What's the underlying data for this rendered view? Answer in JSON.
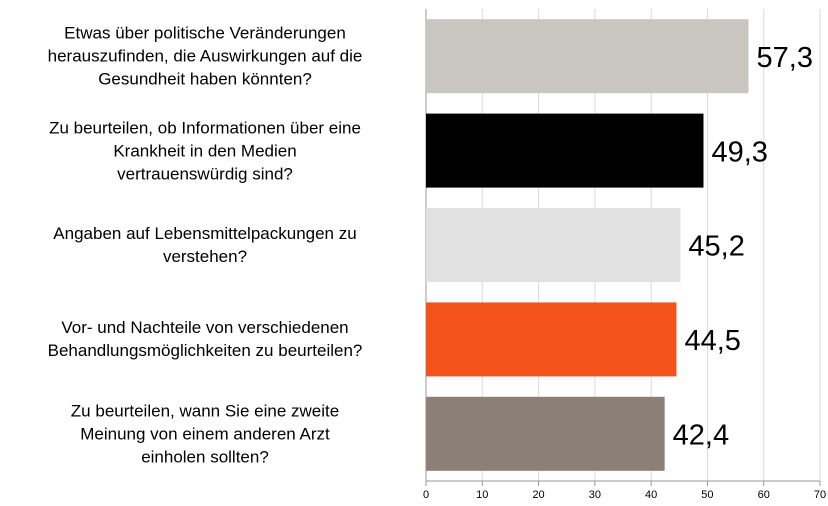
{
  "chart_data": {
    "type": "hbar",
    "categories": [
      "Etwas über politische Veränderungen\nherauszufinden, die Auswirkungen auf die\nGesundheit haben könnten?",
      "Zu beurteilen, ob Informationen über eine\nKrankheit in den Medien\nvertrauenswürdig sind?",
      "Angaben auf Lebensmittelpackungen zu\nverstehen?",
      "Vor- und Nachteile von verschiedenen\nBehandlungsmöglichkeiten zu beurteilen?",
      "Zu beurteilen, wann Sie eine zweite\nMeinung von einem anderen Arzt\neinholen sollten?"
    ],
    "values": [
      57.3,
      49.3,
      45.2,
      44.5,
      42.4
    ],
    "value_labels": [
      "57,3",
      "49,3",
      "45,2",
      "44,5",
      "42,4"
    ],
    "colors": [
      "#c9c5c1",
      "#000000",
      "#e1e1e1",
      "#f4541c",
      "#8b7f76"
    ],
    "xlim": [
      0,
      70
    ],
    "xticks": [
      0,
      10,
      20,
      30,
      40,
      50,
      60,
      70
    ],
    "grid": true
  }
}
